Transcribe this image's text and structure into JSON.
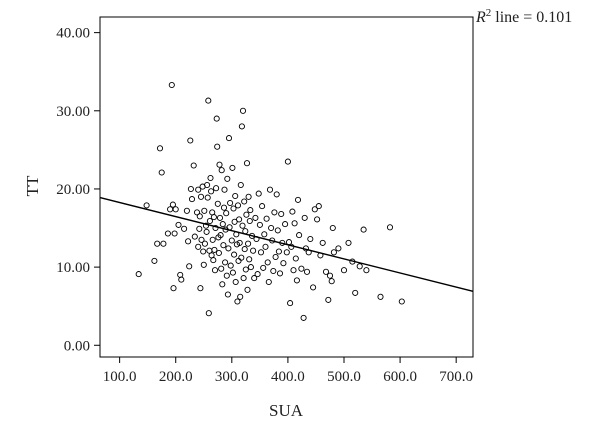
{
  "chart_data": {
    "type": "scatter",
    "title": "",
    "xlabel": "SUA",
    "ylabel": "TT",
    "xlim": [
      65,
      730
    ],
    "ylim": [
      -1.5,
      42
    ],
    "xticks": [
      "100.0",
      "200.0",
      "300.0",
      "400.0",
      "500.0",
      "600.0",
      "700.0"
    ],
    "xtick_values": [
      100,
      200,
      300,
      400,
      500,
      600,
      700
    ],
    "yticks": [
      "0.00",
      "10.00",
      "20.00",
      "30.00",
      "40.00"
    ],
    "ytick_values": [
      0,
      10,
      20,
      30,
      40
    ],
    "grid": false,
    "annotation": {
      "prefix": "R",
      "sup": "2",
      "text": " line = 0.101"
    },
    "fit_line": {
      "x": [
        65,
        730
      ],
      "y": [
        18.9,
        6.9
      ]
    },
    "points": [
      [
        134,
        9.1
      ],
      [
        148,
        17.9
      ],
      [
        162,
        10.8
      ],
      [
        167,
        13.0
      ],
      [
        172,
        25.2
      ],
      [
        175,
        22.1
      ],
      [
        178,
        13.0
      ],
      [
        186,
        14.3
      ],
      [
        190,
        17.4
      ],
      [
        193,
        33.3
      ],
      [
        195,
        18.0
      ],
      [
        196,
        7.3
      ],
      [
        198,
        14.3
      ],
      [
        200,
        17.4
      ],
      [
        205,
        15.4
      ],
      [
        208,
        9.0
      ],
      [
        210,
        8.4
      ],
      [
        215,
        14.9
      ],
      [
        220,
        17.2
      ],
      [
        222,
        13.3
      ],
      [
        224,
        10.1
      ],
      [
        226,
        26.2
      ],
      [
        227,
        20.0
      ],
      [
        229,
        18.7
      ],
      [
        232,
        23.0
      ],
      [
        234,
        13.9
      ],
      [
        238,
        17.0
      ],
      [
        240,
        19.9
      ],
      [
        240,
        12.6
      ],
      [
        242,
        14.9
      ],
      [
        243,
        16.5
      ],
      [
        244,
        7.3
      ],
      [
        245,
        19.0
      ],
      [
        246,
        13.5
      ],
      [
        248,
        20.3
      ],
      [
        249,
        12.0
      ],
      [
        250,
        10.3
      ],
      [
        251,
        17.2
      ],
      [
        252,
        13.0
      ],
      [
        254,
        15.3
      ],
      [
        255,
        14.5
      ],
      [
        256,
        20.5
      ],
      [
        257,
        18.9
      ],
      [
        258,
        31.3
      ],
      [
        259,
        4.1
      ],
      [
        260,
        12.1
      ],
      [
        261,
        15.9
      ],
      [
        262,
        21.4
      ],
      [
        263,
        19.7
      ],
      [
        264,
        11.5
      ],
      [
        265,
        17.0
      ],
      [
        266,
        13.5
      ],
      [
        267,
        10.9
      ],
      [
        268,
        16.4
      ],
      [
        269,
        12.2
      ],
      [
        270,
        9.6
      ],
      [
        271,
        15.0
      ],
      [
        272,
        20.1
      ],
      [
        273,
        29.0
      ],
      [
        274,
        25.4
      ],
      [
        275,
        18.1
      ],
      [
        276,
        13.8
      ],
      [
        277,
        11.8
      ],
      [
        278,
        23.1
      ],
      [
        279,
        16.3
      ],
      [
        280,
        14.1
      ],
      [
        281,
        9.8
      ],
      [
        282,
        22.4
      ],
      [
        283,
        7.8
      ],
      [
        284,
        15.5
      ],
      [
        285,
        12.8
      ],
      [
        286,
        17.6
      ],
      [
        287,
        19.9
      ],
      [
        288,
        10.6
      ],
      [
        289,
        14.8
      ],
      [
        290,
        16.9
      ],
      [
        291,
        8.9
      ],
      [
        292,
        21.3
      ],
      [
        293,
        6.5
      ],
      [
        294,
        12.4
      ],
      [
        295,
        26.5
      ],
      [
        296,
        15.1
      ],
      [
        297,
        18.2
      ],
      [
        298,
        10.2
      ],
      [
        300,
        13.4
      ],
      [
        301,
        22.7
      ],
      [
        302,
        9.3
      ],
      [
        303,
        17.5
      ],
      [
        304,
        11.6
      ],
      [
        305,
        15.8
      ],
      [
        306,
        19.1
      ],
      [
        307,
        8.1
      ],
      [
        308,
        14.2
      ],
      [
        309,
        12.9
      ],
      [
        310,
        5.6
      ],
      [
        311,
        17.9
      ],
      [
        312,
        10.8
      ],
      [
        313,
        16.1
      ],
      [
        314,
        13.1
      ],
      [
        315,
        6.2
      ],
      [
        316,
        20.5
      ],
      [
        317,
        11.2
      ],
      [
        318,
        28.0
      ],
      [
        319,
        15.3
      ],
      [
        320,
        30.0
      ],
      [
        321,
        8.6
      ],
      [
        322,
        18.4
      ],
      [
        323,
        12.3
      ],
      [
        324,
        14.6
      ],
      [
        325,
        9.7
      ],
      [
        326,
        16.7
      ],
      [
        327,
        23.3
      ],
      [
        328,
        7.1
      ],
      [
        329,
        13.0
      ],
      [
        330,
        19.0
      ],
      [
        331,
        11.0
      ],
      [
        332,
        15.9
      ],
      [
        333,
        17.3
      ],
      [
        334,
        10.0
      ],
      [
        336,
        14.0
      ],
      [
        338,
        12.1
      ],
      [
        340,
        8.6
      ],
      [
        342,
        16.3
      ],
      [
        344,
        13.6
      ],
      [
        346,
        9.1
      ],
      [
        348,
        19.4
      ],
      [
        350,
        15.4
      ],
      [
        352,
        11.9
      ],
      [
        354,
        17.8
      ],
      [
        356,
        9.9
      ],
      [
        358,
        14.2
      ],
      [
        360,
        12.6
      ],
      [
        362,
        16.2
      ],
      [
        364,
        10.6
      ],
      [
        366,
        8.1
      ],
      [
        368,
        19.9
      ],
      [
        370,
        15.0
      ],
      [
        372,
        13.4
      ],
      [
        374,
        9.5
      ],
      [
        376,
        17.0
      ],
      [
        378,
        11.3
      ],
      [
        380,
        19.3
      ],
      [
        382,
        14.7
      ],
      [
        384,
        12.0
      ],
      [
        386,
        9.2
      ],
      [
        388,
        16.8
      ],
      [
        390,
        13.1
      ],
      [
        392,
        10.5
      ],
      [
        395,
        15.5
      ],
      [
        398,
        11.9
      ],
      [
        400,
        23.5
      ],
      [
        402,
        13.2
      ],
      [
        404,
        5.4
      ],
      [
        406,
        12.6
      ],
      [
        408,
        17.1
      ],
      [
        410,
        9.6
      ],
      [
        412,
        15.6
      ],
      [
        414,
        11.1
      ],
      [
        416,
        8.3
      ],
      [
        418,
        18.6
      ],
      [
        420,
        14.1
      ],
      [
        424,
        9.8
      ],
      [
        428,
        3.5
      ],
      [
        430,
        16.3
      ],
      [
        432,
        12.4
      ],
      [
        434,
        9.4
      ],
      [
        437,
        11.9
      ],
      [
        440,
        13.6
      ],
      [
        445,
        7.4
      ],
      [
        448,
        17.4
      ],
      [
        452,
        16.1
      ],
      [
        455,
        17.8
      ],
      [
        458,
        11.5
      ],
      [
        462,
        13.1
      ],
      [
        468,
        9.4
      ],
      [
        472,
        5.8
      ],
      [
        475,
        8.9
      ],
      [
        478,
        8.2
      ],
      [
        480,
        15.0
      ],
      [
        482,
        11.9
      ],
      [
        490,
        12.4
      ],
      [
        500,
        9.6
      ],
      [
        508,
        13.1
      ],
      [
        515,
        10.7
      ],
      [
        520,
        6.7
      ],
      [
        528,
        10.1
      ],
      [
        535,
        14.8
      ],
      [
        540,
        9.6
      ],
      [
        565,
        6.2
      ],
      [
        582,
        15.1
      ],
      [
        603,
        5.6
      ]
    ]
  }
}
